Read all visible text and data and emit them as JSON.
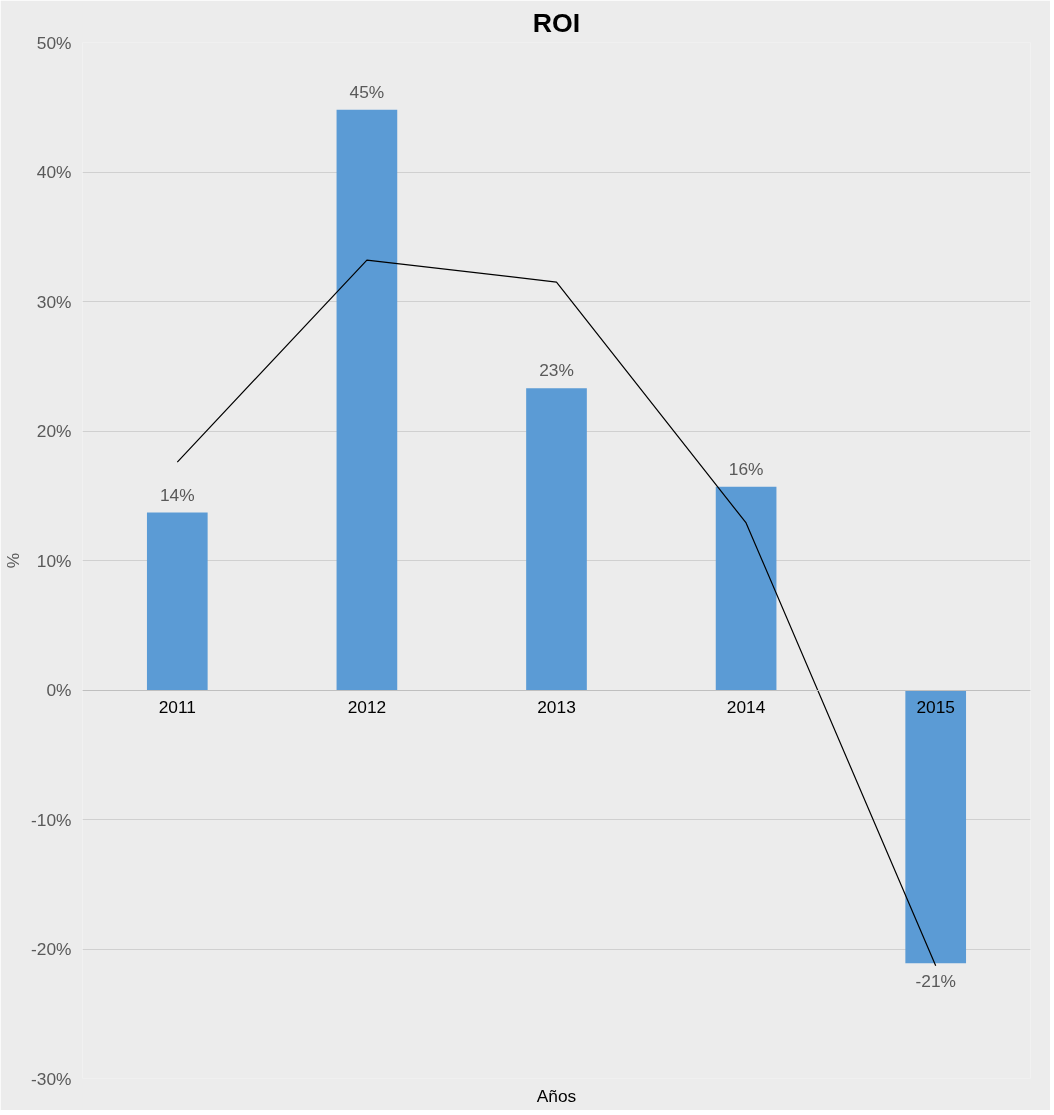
{
  "chart_data": {
    "type": "bar",
    "title": "ROI",
    "xlabel": "Años",
    "ylabel": "%",
    "categories": [
      "2011",
      "2012",
      "2013",
      "2014",
      "2015"
    ],
    "series": [
      {
        "color": "#5b9bd5",
        "values": [
          13.7,
          44.8,
          23.3,
          15.7,
          -21.1
        ],
        "value_labels": [
          "14%",
          "45%",
          "23%",
          "16%",
          "-21%"
        ]
      },
      {
        "type": "line",
        "color": "#000000",
        "values": [
          17.6,
          33.2,
          31.5,
          12.9,
          -21.3
        ]
      }
    ],
    "ylim": [
      -30,
      50
    ],
    "yticks": [
      {
        "value": -30,
        "label": "-30%"
      },
      {
        "value": -20,
        "label": "-20%"
      },
      {
        "value": -10,
        "label": "-10%"
      },
      {
        "value": 0,
        "label": "0%"
      },
      {
        "value": 10,
        "label": "10%"
      },
      {
        "value": 20,
        "label": "20%"
      },
      {
        "value": 30,
        "label": "30%"
      },
      {
        "value": 40,
        "label": "40%"
      },
      {
        "value": 50,
        "label": "50%"
      }
    ],
    "grid": "y"
  }
}
